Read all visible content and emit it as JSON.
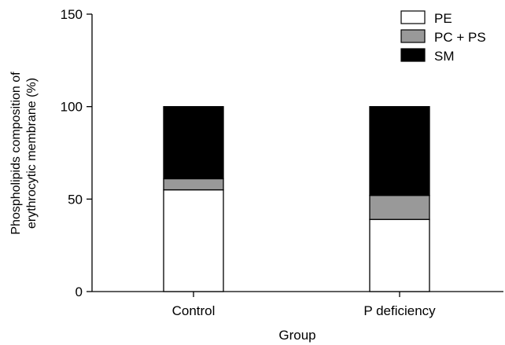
{
  "chart_data": {
    "type": "bar",
    "stacked": true,
    "categories": [
      "Control",
      "P deficiency"
    ],
    "series": [
      {
        "name": "PE",
        "values": [
          55,
          39
        ],
        "color": "#ffffff"
      },
      {
        "name": "PC + PS",
        "values": [
          6,
          13
        ],
        "color": "#999999"
      },
      {
        "name": "SM",
        "values": [
          39,
          48
        ],
        "color": "#000000"
      }
    ],
    "xlabel": "Group",
    "ylabel_lines": [
      "Phospholipids composition of",
      "erythrocytic membrane (%)"
    ],
    "ylim": [
      0,
      150
    ],
    "yticks": [
      0,
      50,
      100,
      150
    ],
    "legend_position": "top-right",
    "grid": false
  }
}
